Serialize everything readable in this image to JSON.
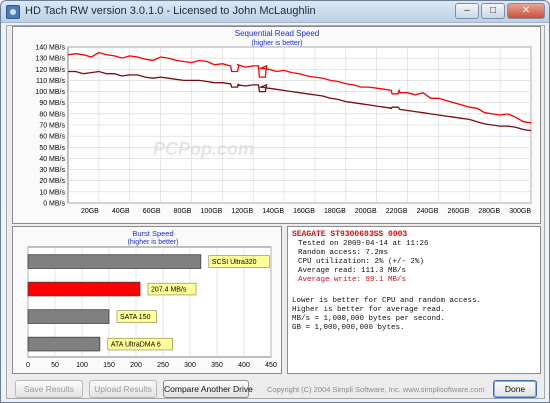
{
  "window": {
    "title": "HD Tach RW version 3.0.1.0 - Licensed to John McLaughlin",
    "controls": {
      "minimize": "–",
      "maximize": "□",
      "close": "✕"
    }
  },
  "watermark": "PCPop.com",
  "chart_data": [
    {
      "type": "line",
      "title": "Sequential Read Speed",
      "subtitle": "(higher is better)",
      "xlabel": "",
      "ylabel": "",
      "ylim": [
        0,
        140
      ],
      "xlim": [
        0,
        300
      ],
      "y_ticks": [
        "140 MB/s",
        "130 MB/s",
        "120 MB/s",
        "110 MB/s",
        "100 MB/s",
        "90 MB/s",
        "80 MB/s",
        "70 MB/s",
        "60 MB/s",
        "50 MB/s",
        "40 MB/s",
        "30 MB/s",
        "20 MB/s",
        "10 MB/s",
        "0 MB/s"
      ],
      "y_tick_values": [
        140,
        130,
        120,
        110,
        100,
        90,
        80,
        70,
        60,
        50,
        40,
        30,
        20,
        10,
        0
      ],
      "x_ticks": [
        "20GB",
        "40GB",
        "60GB",
        "80GB",
        "100GB",
        "120GB",
        "140GB",
        "160GB",
        "180GB",
        "200GB",
        "220GB",
        "240GB",
        "260GB",
        "280GB",
        "300GB"
      ],
      "x_tick_values": [
        20,
        40,
        60,
        80,
        100,
        120,
        140,
        160,
        180,
        200,
        220,
        240,
        260,
        280,
        300
      ],
      "grid": true,
      "series": [
        {
          "color": "#ff0000",
          "x": [
            0,
            5,
            10,
            15,
            20,
            25,
            30,
            35,
            40,
            45,
            50,
            55,
            60,
            65,
            70,
            75,
            80,
            85,
            90,
            95,
            100,
            105,
            110,
            115,
            120,
            125,
            130,
            135,
            140,
            145,
            150,
            155,
            160,
            165,
            170,
            175,
            180,
            185,
            190,
            195,
            200,
            205,
            210,
            215,
            220,
            225,
            230,
            235,
            240,
            245,
            250,
            255,
            260,
            265,
            270,
            275,
            280,
            285,
            290,
            295,
            300
          ],
          "values": [
            133,
            134,
            133,
            131,
            135,
            133,
            132,
            130,
            132,
            131,
            129,
            128,
            131,
            130,
            128,
            127,
            126,
            128,
            127,
            124,
            125,
            123,
            124,
            122,
            123,
            121,
            120,
            118,
            119,
            117,
            116,
            114,
            113,
            112,
            110,
            109,
            107,
            106,
            104,
            104,
            103,
            102,
            101,
            99,
            99,
            97,
            99,
            94,
            94,
            92,
            90,
            88,
            86,
            85,
            81,
            80,
            79,
            80,
            77,
            73,
            72
          ]
        },
        {
          "color": "#7b0a14",
          "x": [
            0,
            5,
            10,
            15,
            20,
            25,
            30,
            35,
            40,
            45,
            50,
            55,
            60,
            65,
            70,
            75,
            80,
            85,
            90,
            95,
            100,
            105,
            110,
            115,
            120,
            125,
            130,
            135,
            140,
            145,
            150,
            155,
            160,
            165,
            170,
            175,
            180,
            185,
            190,
            195,
            200,
            205,
            210,
            215,
            220,
            225,
            230,
            235,
            240,
            245,
            250,
            255,
            260,
            265,
            270,
            275,
            280,
            285,
            290,
            295,
            300
          ],
          "values": [
            118,
            118,
            116,
            117,
            118,
            116,
            116,
            114,
            115,
            115,
            113,
            112,
            113,
            112,
            111,
            110,
            110,
            110,
            109,
            108,
            108,
            107,
            106,
            105,
            106,
            104,
            103,
            102,
            101,
            100,
            99,
            98,
            97,
            96,
            94,
            93,
            91,
            90,
            89,
            88,
            87,
            86,
            85,
            84,
            83,
            82,
            81,
            80,
            79,
            78,
            77,
            76,
            75,
            73,
            71,
            70,
            69,
            69,
            68,
            66,
            65
          ]
        }
      ],
      "dips": [
        {
          "x": 106,
          "red": 118,
          "dark": 104
        },
        {
          "x": 124,
          "red": 113,
          "dark": 100
        },
        {
          "x": 210,
          "red": 98,
          "dark": 86
        }
      ]
    },
    {
      "type": "bar",
      "title": "Burst Speed",
      "subtitle": "(higher is better)",
      "orientation": "horizontal",
      "xlim": [
        0,
        450
      ],
      "x_ticks": [
        "0",
        "50",
        "100",
        "150",
        "200",
        "250",
        "300",
        "350",
        "400",
        "450"
      ],
      "categories": [
        "SCSI Ultra320",
        "207.4 MB/s",
        "SATA 150",
        "ATA UltraDMA 6"
      ],
      "values": [
        320,
        207.4,
        150,
        133
      ],
      "colors": [
        "#808080",
        "#ff0000",
        "#808080",
        "#808080"
      ],
      "label_bg": "#ffff99"
    }
  ],
  "info": {
    "drive_name": "SEAGATE ST9300603SS 0003",
    "tested_on": "Tested on 2009-04-14 at 11:26",
    "random_access": "Random access: 7.2ms",
    "cpu_utilization": "CPU utilization: 2% (+/- 2%)",
    "average_read": "Average read: 111.3 MB/s",
    "average_write": "Average write: 99.1 MB/s",
    "note_1": "Lower is better for CPU and random access.",
    "note_2": "Higher is better for average read.",
    "note_3": "MB/s = 1,000,000 bytes per second.",
    "note_4": "GB = 1,000,000,000 bytes."
  },
  "buttons": {
    "save_results": "Save Results",
    "upload_results": "Upload Results",
    "compare_drive": "Compare Another Drive",
    "done": "Done"
  },
  "copyright": "Copyright (C) 2004 Simpli Software, Inc. www.simplisoftware.com"
}
